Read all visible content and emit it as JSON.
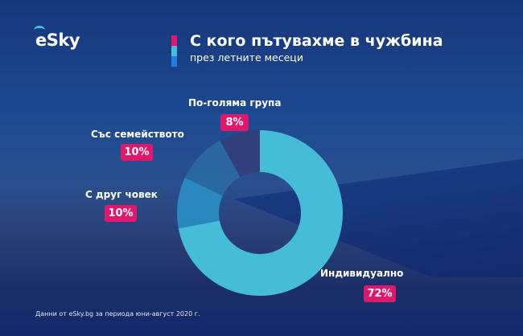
{
  "brand": {
    "logo_text": "eSky"
  },
  "header": {
    "title": "С кого пътувахме в чужбина",
    "subtitle": "през летните месеци",
    "bar_colors": [
      "#e0186c",
      "#45bcd8",
      "#1f7fe0"
    ]
  },
  "chart_data": {
    "type": "pie",
    "donut": true,
    "title": "С кого пътувахме в чужбина",
    "subtitle": "през летните месеци",
    "categories": [
      "Индивидуално",
      "С друг човек",
      "Със семейството",
      "По-голяма група"
    ],
    "values": [
      72,
      10,
      10,
      8
    ],
    "value_labels": [
      "72%",
      "10%",
      "10%",
      "8%"
    ],
    "colors": [
      "#45bcd8",
      "#2a8fc4",
      "#2b6aa2",
      "#333f7a"
    ],
    "label_badge_color": "#e0186c"
  },
  "footer": {
    "source": "Данни от eSky.bg за периода юни-август 2020 г."
  }
}
